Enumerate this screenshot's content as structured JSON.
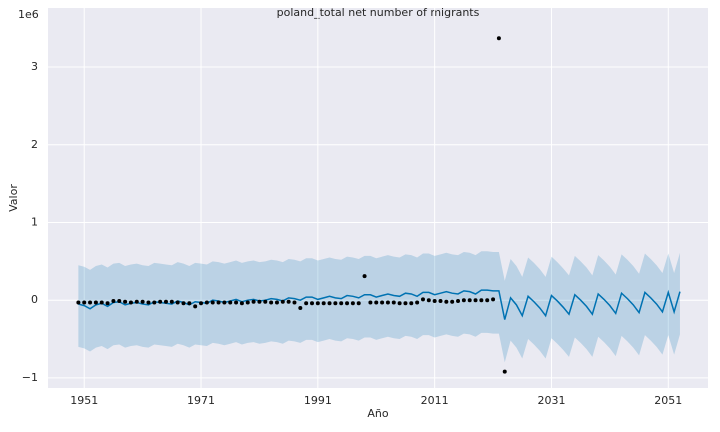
{
  "chart_data": {
    "type": "forecast",
    "title": "poland_total net number of migrants",
    "xlabel": "Año",
    "ylabel": "Valor",
    "y_offset_label": "1e6",
    "xlim": [
      1944.8,
      2057.8
    ],
    "xticks": [
      1951,
      1971,
      1991,
      2011,
      2031,
      2051
    ],
    "ylim": [
      -1.13,
      3.76
    ],
    "yticks": [
      {
        "value": -1,
        "label": "−1"
      },
      0,
      1,
      2,
      3
    ],
    "grid": true,
    "observations": {
      "color": "#000000",
      "x": [
        1950,
        1951,
        1952,
        1953,
        1954,
        1955,
        1956,
        1957,
        1958,
        1959,
        1960,
        1961,
        1962,
        1963,
        1964,
        1965,
        1966,
        1967,
        1968,
        1969,
        1970,
        1971,
        1972,
        1973,
        1974,
        1975,
        1976,
        1977,
        1978,
        1979,
        1980,
        1981,
        1982,
        1983,
        1984,
        1985,
        1986,
        1987,
        1988,
        1989,
        1990,
        1991,
        1992,
        1993,
        1994,
        1995,
        1996,
        1997,
        1998,
        1999,
        2000,
        2001,
        2002,
        2003,
        2004,
        2005,
        2006,
        2007,
        2008,
        2009,
        2010,
        2011,
        2012,
        2013,
        2014,
        2015,
        2016,
        2017,
        2018,
        2019,
        2020,
        2021,
        2022,
        2023
      ],
      "values": [
        -0.03,
        -0.03,
        -0.03,
        -0.03,
        -0.03,
        -0.04,
        -0.01,
        -0.01,
        -0.02,
        -0.03,
        -0.02,
        -0.02,
        -0.03,
        -0.03,
        -0.02,
        -0.02,
        -0.02,
        -0.03,
        -0.04,
        -0.04,
        -0.08,
        -0.04,
        -0.03,
        -0.03,
        -0.03,
        -0.03,
        -0.03,
        -0.03,
        -0.04,
        -0.03,
        -0.02,
        -0.02,
        -0.02,
        -0.03,
        -0.03,
        -0.02,
        -0.02,
        -0.03,
        -0.1,
        -0.04,
        -0.04,
        -0.04,
        -0.04,
        -0.04,
        -0.04,
        -0.04,
        -0.04,
        -0.04,
        -0.04,
        0.31,
        -0.03,
        -0.03,
        -0.03,
        -0.03,
        -0.03,
        -0.04,
        -0.04,
        -0.04,
        -0.03,
        0.01,
        0.0,
        -0.01,
        -0.01,
        -0.02,
        -0.02,
        -0.01,
        0.0,
        0.0,
        0.0,
        0.0,
        0.0,
        0.01,
        3.37,
        -0.92
      ]
    },
    "forecast": {
      "color": "#0072B2",
      "x": [
        1950,
        1951,
        1952,
        1953,
        1954,
        1955,
        1956,
        1957,
        1958,
        1959,
        1960,
        1961,
        1962,
        1963,
        1964,
        1965,
        1966,
        1967,
        1968,
        1969,
        1970,
        1971,
        1972,
        1973,
        1974,
        1975,
        1976,
        1977,
        1978,
        1979,
        1980,
        1981,
        1982,
        1983,
        1984,
        1985,
        1986,
        1987,
        1988,
        1989,
        1990,
        1991,
        1992,
        1993,
        1994,
        1995,
        1996,
        1997,
        1998,
        1999,
        2000,
        2001,
        2002,
        2003,
        2004,
        2005,
        2006,
        2007,
        2008,
        2009,
        2010,
        2011,
        2012,
        2013,
        2014,
        2015,
        2016,
        2017,
        2018,
        2019,
        2020,
        2021,
        2022,
        2023,
        2024,
        2025,
        2026,
        2027,
        2028,
        2029,
        2030,
        2031,
        2032,
        2033,
        2034,
        2035,
        2036,
        2037,
        2038,
        2039,
        2040,
        2041,
        2042,
        2043,
        2044,
        2045,
        2046,
        2047,
        2048,
        2049,
        2050,
        2051,
        2052,
        2053
      ],
      "values": [
        -0.05,
        -0.07,
        -0.11,
        -0.06,
        -0.04,
        -0.08,
        -0.03,
        -0.02,
        -0.06,
        -0.04,
        -0.03,
        -0.05,
        -0.06,
        -0.02,
        -0.03,
        -0.04,
        -0.05,
        -0.01,
        -0.03,
        -0.06,
        -0.02,
        -0.03,
        -0.04,
        0.0,
        -0.01,
        -0.03,
        -0.01,
        0.01,
        -0.02,
        0.0,
        0.01,
        -0.01,
        0.0,
        0.02,
        0.01,
        -0.01,
        0.03,
        0.02,
        0.0,
        0.04,
        0.04,
        0.01,
        0.03,
        0.05,
        0.03,
        0.02,
        0.06,
        0.05,
        0.03,
        0.07,
        0.07,
        0.04,
        0.06,
        0.08,
        0.06,
        0.05,
        0.09,
        0.08,
        0.05,
        0.1,
        0.1,
        0.07,
        0.09,
        0.11,
        0.09,
        0.08,
        0.12,
        0.11,
        0.08,
        0.13,
        0.13,
        0.12,
        0.12,
        -0.25,
        0.03,
        -0.06,
        -0.2,
        0.05,
        -0.02,
        -0.1,
        -0.2,
        0.06,
        -0.01,
        -0.09,
        -0.18,
        0.07,
        0.0,
        -0.08,
        -0.18,
        0.08,
        0.01,
        -0.07,
        -0.17,
        0.09,
        0.02,
        -0.06,
        -0.16,
        0.1,
        0.03,
        -0.05,
        -0.15,
        0.1,
        -0.15,
        0.11
      ],
      "upper": [
        0.45,
        0.43,
        0.39,
        0.44,
        0.46,
        0.42,
        0.47,
        0.48,
        0.44,
        0.46,
        0.47,
        0.45,
        0.44,
        0.48,
        0.47,
        0.46,
        0.45,
        0.49,
        0.47,
        0.44,
        0.48,
        0.47,
        0.46,
        0.5,
        0.49,
        0.47,
        0.49,
        0.51,
        0.48,
        0.5,
        0.51,
        0.49,
        0.5,
        0.52,
        0.51,
        0.49,
        0.53,
        0.52,
        0.5,
        0.54,
        0.54,
        0.51,
        0.53,
        0.55,
        0.53,
        0.52,
        0.56,
        0.55,
        0.53,
        0.57,
        0.57,
        0.54,
        0.56,
        0.58,
        0.56,
        0.55,
        0.59,
        0.58,
        0.55,
        0.6,
        0.6,
        0.57,
        0.59,
        0.61,
        0.59,
        0.58,
        0.62,
        0.61,
        0.58,
        0.63,
        0.63,
        0.62,
        0.62,
        0.25,
        0.53,
        0.44,
        0.3,
        0.55,
        0.48,
        0.4,
        0.3,
        0.56,
        0.49,
        0.41,
        0.32,
        0.57,
        0.5,
        0.42,
        0.32,
        0.58,
        0.51,
        0.43,
        0.33,
        0.59,
        0.52,
        0.44,
        0.34,
        0.6,
        0.53,
        0.45,
        0.35,
        0.6,
        0.35,
        0.61
      ],
      "lower": [
        -0.6,
        -0.62,
        -0.66,
        -0.61,
        -0.59,
        -0.63,
        -0.58,
        -0.57,
        -0.61,
        -0.59,
        -0.58,
        -0.6,
        -0.61,
        -0.57,
        -0.58,
        -0.59,
        -0.6,
        -0.56,
        -0.58,
        -0.61,
        -0.57,
        -0.58,
        -0.59,
        -0.55,
        -0.56,
        -0.58,
        -0.56,
        -0.54,
        -0.57,
        -0.55,
        -0.54,
        -0.56,
        -0.55,
        -0.53,
        -0.54,
        -0.56,
        -0.52,
        -0.53,
        -0.55,
        -0.51,
        -0.51,
        -0.54,
        -0.52,
        -0.5,
        -0.52,
        -0.53,
        -0.49,
        -0.5,
        -0.52,
        -0.48,
        -0.48,
        -0.51,
        -0.49,
        -0.47,
        -0.49,
        -0.5,
        -0.46,
        -0.47,
        -0.5,
        -0.45,
        -0.45,
        -0.48,
        -0.46,
        -0.44,
        -0.46,
        -0.47,
        -0.43,
        -0.44,
        -0.47,
        -0.42,
        -0.42,
        -0.43,
        -0.43,
        -0.8,
        -0.52,
        -0.61,
        -0.75,
        -0.5,
        -0.57,
        -0.65,
        -0.75,
        -0.49,
        -0.56,
        -0.64,
        -0.73,
        -0.48,
        -0.55,
        -0.63,
        -0.73,
        -0.47,
        -0.54,
        -0.62,
        -0.72,
        -0.46,
        -0.53,
        -0.61,
        -0.71,
        -0.45,
        -0.52,
        -0.6,
        -0.7,
        -0.45,
        -0.7,
        -0.44
      ]
    }
  }
}
